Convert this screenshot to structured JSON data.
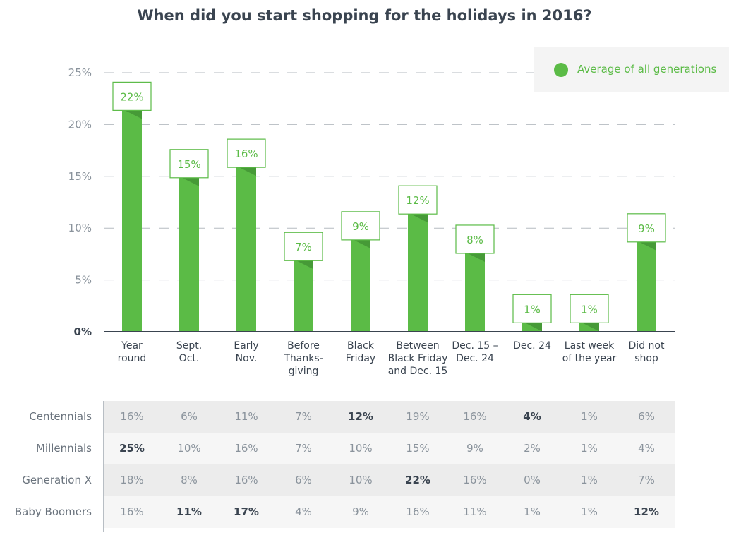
{
  "chart_data": {
    "type": "bar",
    "title": "When did you start shopping for the holidays in 2016?",
    "categories": [
      [
        "Year",
        "round"
      ],
      [
        "Sept.",
        "Oct."
      ],
      [
        "Early",
        "Nov."
      ],
      [
        "Before",
        "Thanks-",
        "giving"
      ],
      [
        "Black",
        "Friday"
      ],
      [
        "Between",
        "Black Friday",
        "and Dec. 15"
      ],
      [
        "Dec. 15 –",
        "Dec. 24"
      ],
      [
        "Dec. 24"
      ],
      [
        "Last week",
        "of the year"
      ],
      [
        "Did not",
        "shop"
      ]
    ],
    "series": [
      {
        "name": "Average of all generations",
        "values": [
          21.5,
          15,
          16,
          7,
          9,
          11.5,
          7.7,
          1,
          1,
          8.8
        ],
        "labels": [
          "22%",
          "15%",
          "16%",
          "7%",
          "9%",
          "12%",
          "8%",
          "1%",
          "1%",
          "9%"
        ]
      }
    ],
    "ylim": [
      0,
      25
    ],
    "yticks": [
      0,
      5,
      10,
      15,
      20,
      25
    ],
    "ytick_labels": [
      "0%",
      "5%",
      "10%",
      "15%",
      "20%",
      "25%"
    ],
    "grid": true,
    "legend_position": "top-right",
    "colors": {
      "bar": "#5bbb46",
      "bar_shadow": "#3f8f33",
      "axis": "#3a4450",
      "grid": "#b5bbc1",
      "label_border": "#5bbb46"
    }
  },
  "table": {
    "rows": [
      {
        "label": "Centennials",
        "values": [
          "16%",
          "6%",
          "11%",
          "7%",
          "12%",
          "19%",
          "16%",
          "4%",
          "1%",
          "6%"
        ],
        "bold": [
          4,
          7
        ]
      },
      {
        "label": "Millennials",
        "values": [
          "25%",
          "10%",
          "16%",
          "7%",
          "10%",
          "15%",
          "9%",
          "2%",
          "1%",
          "4%"
        ],
        "bold": [
          0
        ]
      },
      {
        "label": "Generation X",
        "values": [
          "18%",
          "8%",
          "16%",
          "6%",
          "10%",
          "22%",
          "16%",
          "0%",
          "1%",
          "7%"
        ],
        "bold": [
          5
        ]
      },
      {
        "label": "Baby Boomers",
        "values": [
          "16%",
          "11%",
          "17%",
          "4%",
          "9%",
          "16%",
          "11%",
          "1%",
          "1%",
          "12%"
        ],
        "bold": [
          1,
          2,
          9
        ]
      }
    ],
    "band_colors": [
      "#ececec",
      "#f6f6f6"
    ]
  }
}
